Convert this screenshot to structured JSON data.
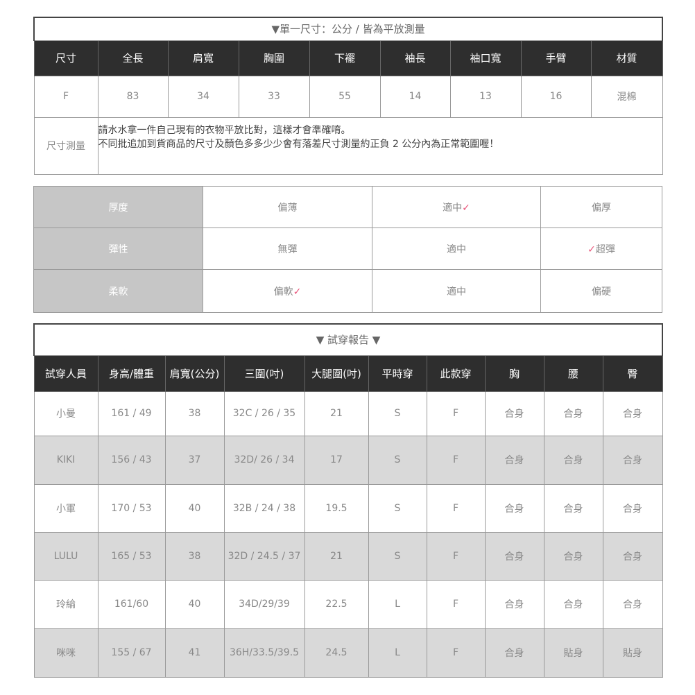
{
  "size_table": {
    "title": "▼單一尺寸：公分 / 皆為平放測量",
    "headers": [
      "尺寸",
      "全長",
      "肩寬",
      "胸圍",
      "下襬",
      "袖長",
      "袖口寬",
      "手臂",
      "材質"
    ],
    "row": [
      "F",
      "83",
      "34",
      "33",
      "55",
      "14",
      "13",
      "16",
      "混棉"
    ],
    "note_label": "尺寸測量",
    "note_lines": [
      "請水水拿一件自己現有的衣物平放比對，這樣才會準確唷。",
      "不同批追加到貨商品的尺寸及顏色多多少少會有落差尺寸測量約正負 2 公分內為正常範圍喔！"
    ]
  },
  "fabric_table": {
    "check": "✓",
    "check_color": "#e8557a",
    "rows": [
      {
        "label": "厚度",
        "options": [
          "偏薄",
          "適中",
          "偏厚"
        ],
        "selected": 1
      },
      {
        "label": "彈性",
        "options": [
          "無彈",
          "適中",
          "超彈"
        ],
        "selected": 2
      },
      {
        "label": "柔軟",
        "options": [
          "偏軟",
          "適中",
          "偏硬"
        ],
        "selected": 0
      }
    ]
  },
  "fitting_table": {
    "title": "▼ 試穿報告 ▼",
    "headers": [
      "試穿人員",
      "身高/體重",
      "肩寬(公分)",
      "三圍(吋)",
      "大腿圍(吋)",
      "平時穿",
      "此款穿",
      "胸",
      "腰",
      "臀"
    ],
    "rows": [
      [
        "小曼",
        "161 / 49",
        "38",
        "32C / 26 / 35",
        "21",
        "S",
        "F",
        "合身",
        "合身",
        "合身"
      ],
      [
        "KIKI",
        "156 / 43",
        "37",
        "32D/ 26 / 34",
        "17",
        "S",
        "F",
        "合身",
        "合身",
        "合身"
      ],
      [
        "小軍",
        "170 / 53",
        "40",
        "32B / 24 / 38",
        "19.5",
        "S",
        "F",
        "合身",
        "合身",
        "合身"
      ],
      [
        "LULU",
        "165 / 53",
        "38",
        "32D / 24.5 / 37",
        "21",
        "S",
        "F",
        "合身",
        "合身",
        "合身"
      ],
      [
        "玲綸",
        "161/60",
        "40",
        "34D/29/39",
        "22.5",
        "L",
        "F",
        "合身",
        "合身",
        "合身"
      ],
      [
        "咪咪",
        "155 / 67",
        "41",
        "36H/33.5/39.5",
        "24.5",
        "L",
        "F",
        "合身",
        "貼身",
        "貼身"
      ]
    ]
  }
}
